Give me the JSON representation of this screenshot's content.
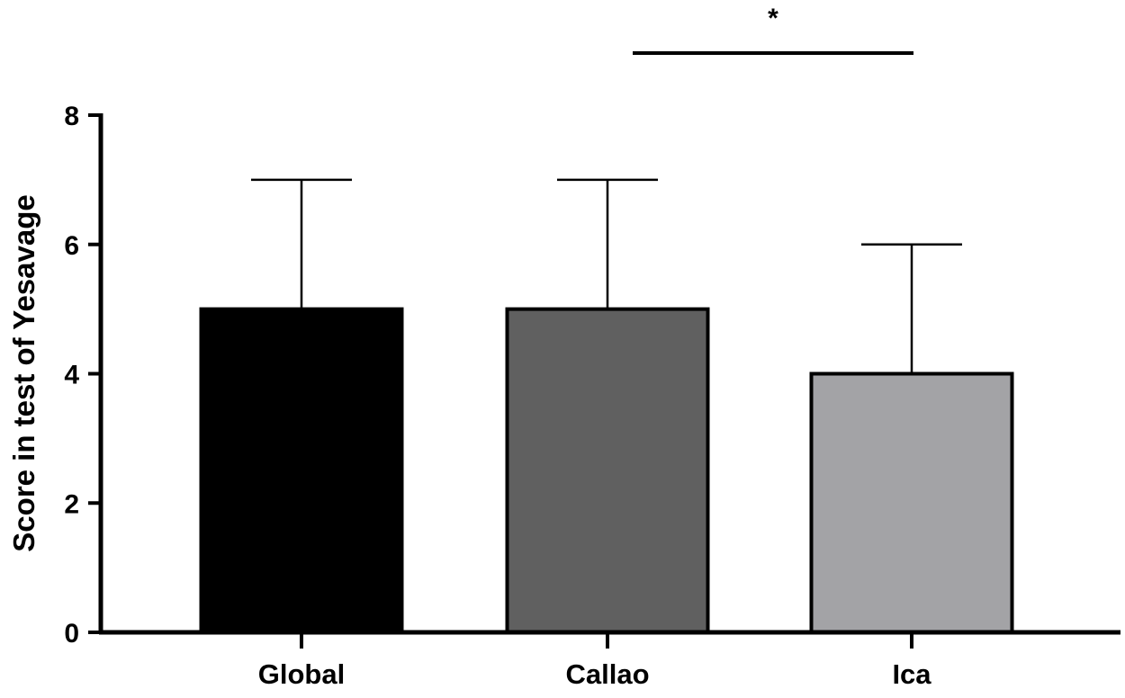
{
  "chart_data": {
    "type": "bar",
    "categories": [
      "Global",
      "Callao",
      "Ica"
    ],
    "values": [
      5,
      5,
      4
    ],
    "error_upper": [
      7,
      7,
      6
    ],
    "bar_colors": [
      "#000000",
      "#606060",
      "#a3a3a6"
    ],
    "title": "",
    "xlabel": "",
    "ylabel": "Score in test of Yesavage",
    "ylim": [
      0,
      8
    ],
    "yticks": [
      0,
      2,
      4,
      6,
      8
    ],
    "grid": false,
    "significance": {
      "from_category": "Callao",
      "to_category": "Ica",
      "label": "*"
    }
  }
}
